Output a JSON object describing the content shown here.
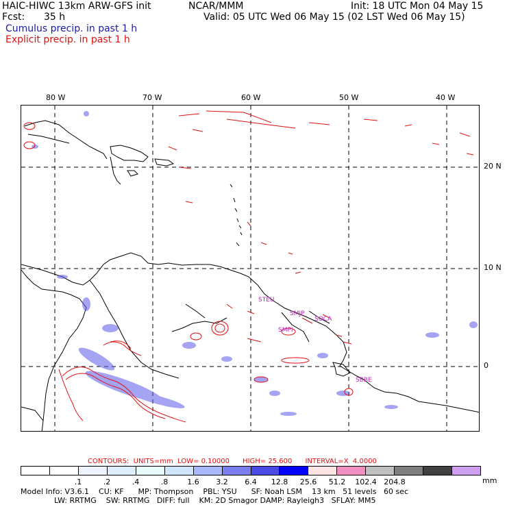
{
  "header": {
    "model": "HAIC-HIWC 13km ARW-GFS init",
    "org": "NCAR/MMM",
    "init": "Init: 18 UTC Mon 04 May 15",
    "fcst_label": "Fcst:",
    "fcst_value": "35 h",
    "valid": "Valid: 05 UTC Wed 06 May 15 (02 LST Wed 06 May 15)",
    "cumulus": "Cumulus precip. in past 1 h",
    "explicit": "Explicit precip. in past 1 h"
  },
  "map": {
    "lon_labels": [
      "80 W",
      "70 W",
      "60 W",
      "50 W",
      "40 W"
    ],
    "lat_labels": [
      "20 N",
      "10 N",
      "0"
    ],
    "regions": [
      "STEU",
      "SMJP",
      "SOCA",
      "SMPI",
      "SBBE"
    ]
  },
  "contours": {
    "label": "CONTOURS:",
    "units": "UNITS=mm",
    "low": "LOW= 0.10000",
    "high": "HIGH= 25.600",
    "interval": "INTERVAL=X  4.0000"
  },
  "colorbar": {
    "colors": [
      "#ffffff",
      "#ffffff",
      "#eef4ff",
      "#ddeeff",
      "#e6fafa",
      "#d0e6ff",
      "#a8b8ff",
      "#7b7ef0",
      "#4a4ae6",
      "#0000ff",
      "#ffe4e4",
      "#f090c0",
      "#c0c0c0",
      "#808080",
      "#404040",
      "#d0a0f0"
    ],
    "labels": [
      ".1",
      ".2",
      ".4",
      ".8",
      "1.6",
      "3.2",
      "6.4",
      "12.8",
      "25.6",
      "51.2",
      "102.4",
      "204.8"
    ],
    "units": "mm"
  },
  "model_info": {
    "line1": "Model Info: V3.6.1    CU: KF      MP: Thompson    PBL: YSU      SF: Noah LSM    13 km   51 levels   60 sec",
    "line2": "              LW: RRTMG    SW: RRTMG   DIFF: full    KM: 2D Smagor DAMP: Rayleigh3   SFLAY: MM5"
  },
  "colors": {
    "explicit_contour": "#e01010",
    "cumulus_fill": "#5a5ae8",
    "region_label": "#c020c0"
  }
}
